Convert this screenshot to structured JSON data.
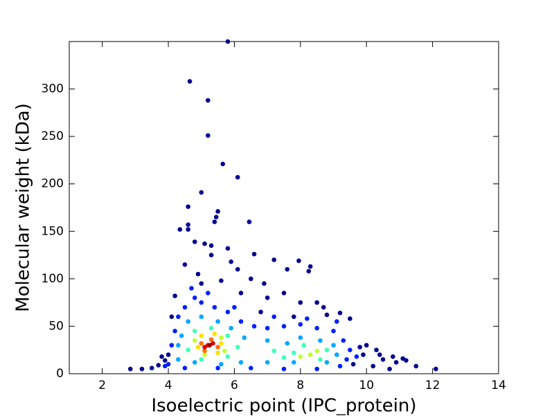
{
  "chart_data": {
    "type": "scatter",
    "xlabel": "Isoelectric point (IPC_protein)",
    "ylabel": "Molecular weight (kDa)",
    "xlim": [
      1,
      14
    ],
    "ylim": [
      0,
      350
    ],
    "xticks": [
      2,
      4,
      6,
      8,
      10,
      12,
      14
    ],
    "yticks": [
      0,
      50,
      100,
      150,
      200,
      250,
      300
    ],
    "series": [
      {
        "color": "#00008f",
        "x": [
          4.65,
          5.2,
          5.2,
          5.8,
          5.65,
          6.1,
          5.0,
          4.6,
          5.5,
          5.45,
          5.4,
          6.45,
          4.6,
          4.6,
          4.35,
          5.1,
          4.8,
          5.3,
          5.8,
          6.6,
          7.2,
          7.95,
          8.3,
          8.25,
          7.6,
          4.5,
          5.3,
          5.9,
          6.1,
          4.2,
          4.1,
          2.85,
          3.2,
          3.5,
          3.7,
          3.9,
          10.0,
          10.3,
          10.5,
          10.9,
          11.1,
          11.2,
          11.5,
          12.1,
          10.7,
          10.2,
          9.5,
          9.2,
          8.7,
          8.0,
          7.5,
          6.9,
          6.5,
          4.9,
          5.6,
          5.0,
          7.0,
          6.2,
          8.8,
          9.8,
          9.9,
          9.6,
          10.4,
          10.8,
          4.0,
          3.8,
          6.8,
          7.8,
          8.5
        ],
        "values": [
          308,
          288,
          251,
          350,
          221,
          207,
          191,
          176,
          171,
          165,
          160,
          160,
          157,
          152,
          152,
          137,
          139,
          135,
          132,
          126,
          120,
          119,
          113,
          108,
          110,
          115,
          125,
          118,
          110,
          82,
          60,
          5,
          5,
          6,
          9,
          14,
          30,
          25,
          15,
          12,
          16,
          14,
          8,
          5,
          5,
          8,
          58,
          64,
          70,
          75,
          85,
          95,
          100,
          105,
          98,
          95,
          80,
          85,
          62,
          28,
          20,
          10,
          20,
          18,
          20,
          18,
          65,
          60,
          75
        ]
      },
      {
        "color": "#0020ff",
        "x": [
          4.3,
          4.5,
          4.8,
          5.0,
          5.4,
          5.8,
          6.2,
          6.6,
          7.0,
          7.5,
          8.0,
          8.5,
          9.0,
          9.3,
          9.5,
          9.4,
          9.2,
          8.5,
          7.5,
          6.5,
          5.5,
          4.5,
          4.0,
          4.1,
          4.2,
          6.0,
          7.2,
          8.2,
          9.1,
          3.9,
          9.7,
          5.2,
          4.7
        ],
        "values": [
          60,
          70,
          80,
          75,
          70,
          65,
          55,
          50,
          48,
          50,
          52,
          48,
          45,
          35,
          25,
          15,
          8,
          5,
          5,
          6,
          6,
          6,
          10,
          30,
          45,
          70,
          60,
          58,
          55,
          8,
          18,
          85,
          90
        ]
      },
      {
        "color": "#00a8ff",
        "x": [
          4.4,
          4.6,
          5.0,
          5.5,
          5.9,
          6.3,
          7.0,
          7.6,
          8.0,
          8.6,
          9.0,
          9.1,
          8.8,
          7.8,
          7.0,
          6.2,
          5.6,
          4.8,
          4.3,
          4.3
        ],
        "values": [
          40,
          55,
          60,
          55,
          48,
          38,
          35,
          32,
          38,
          35,
          30,
          20,
          12,
          12,
          12,
          12,
          10,
          12,
          15,
          30
        ]
      },
      {
        "color": "#40ffb8",
        "x": [
          4.6,
          4.8,
          5.3,
          5.8,
          6.1,
          7.2,
          7.8,
          8.1,
          8.8,
          8.6,
          7.5,
          5.0,
          5.8
        ],
        "values": [
          25,
          45,
          48,
          40,
          28,
          24,
          22,
          30,
          25,
          15,
          17,
          15,
          18
        ]
      },
      {
        "color": "#c0ff30",
        "x": [
          8.3,
          8.5,
          4.8,
          5.6,
          5.1,
          5.7,
          8.0
        ],
        "values": [
          20,
          24,
          35,
          38,
          20,
          24,
          18
        ]
      },
      {
        "color": "#ffe000",
        "x": [
          4.9,
          5.6,
          5.0,
          5.4,
          5.5
        ],
        "values": [
          28,
          32,
          40,
          42,
          22
        ]
      },
      {
        "color": "#ff7000",
        "x": [
          5.0,
          5.3,
          5.5,
          5.1
        ],
        "values": [
          32,
          36,
          28,
          24
        ]
      },
      {
        "color": "#e00000",
        "x": [
          5.2,
          5.35,
          5.1
        ],
        "values": [
          30,
          32,
          28
        ]
      },
      {
        "color": "#a00000",
        "x": [
          5.25
        ],
        "values": [
          30
        ]
      }
    ]
  }
}
